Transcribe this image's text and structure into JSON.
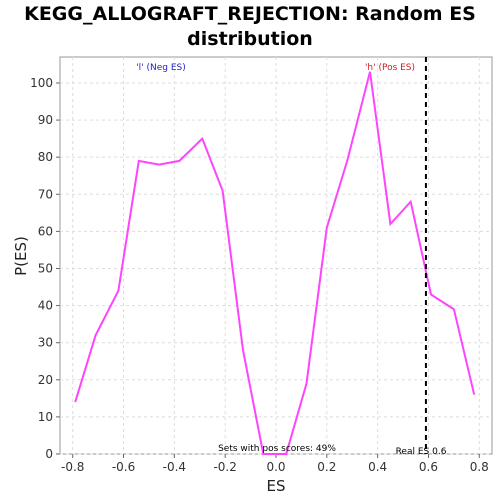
{
  "title_line1": "KEGG_ALLOGRAFT_REJECTION: Random ES",
  "title_line2": "distribution",
  "chart_data": {
    "type": "line",
    "title": "KEGG_ALLOGRAFT_REJECTION: Random ES distribution",
    "xlabel": "ES",
    "ylabel": "P(ES)",
    "xlim": [
      -0.85,
      0.85
    ],
    "ylim": [
      0,
      107
    ],
    "xticks": [
      -0.8,
      -0.6,
      -0.4,
      -0.2,
      0.0,
      0.2,
      0.4,
      0.6,
      0.8
    ],
    "xtick_labels": [
      "-0.8",
      "-0.6",
      "-0.4",
      "-0.2",
      "0.0",
      "0.2",
      "0.4",
      "0.6",
      "0.8"
    ],
    "yticks": [
      0,
      10,
      20,
      30,
      40,
      50,
      60,
      70,
      80,
      90,
      100
    ],
    "ytick_labels": [
      "0",
      "10",
      "20",
      "30",
      "40",
      "50",
      "60",
      "70",
      "80",
      "90",
      "100"
    ],
    "grid": true,
    "series": [
      {
        "color": "#ff44ff",
        "x": [
          -0.79,
          -0.71,
          -0.62,
          -0.54,
          -0.46,
          -0.38,
          -0.29,
          -0.21,
          -0.13,
          -0.05,
          0.04,
          0.12,
          0.2,
          0.28,
          0.37,
          0.45,
          0.53,
          0.61,
          0.7,
          0.78
        ],
        "y": [
          14,
          32,
          44,
          79,
          78,
          79,
          85,
          71,
          28,
          0,
          0,
          19,
          61,
          79,
          103,
          62,
          68,
          43,
          39,
          16
        ]
      }
    ],
    "real_es": 0.59,
    "annotations": {
      "neg_label": "'l' (Neg ES)",
      "pos_label": "'h' (Pos ES)",
      "sets_label": "Sets with pos scores: 49%",
      "real_es_label": "Real ES 0.6"
    },
    "colors": {
      "line": "#ff44ff",
      "neg_label": "#2222cc",
      "pos_label": "#cc2222",
      "real_es_line": "#000000",
      "plot_bg": "#ffffff",
      "grid": "#dddddd"
    }
  }
}
